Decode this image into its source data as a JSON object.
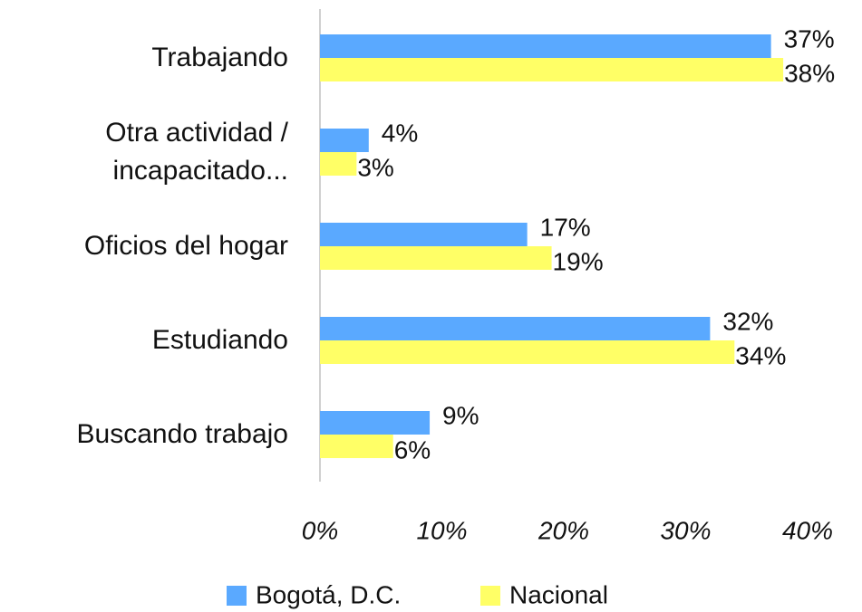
{
  "chart_data": {
    "type": "barh",
    "categories": [
      "Trabajando",
      "Otra actividad / incapacitado...",
      "Oficios del hogar",
      "Estudiando",
      "Buscando trabajo"
    ],
    "series": [
      {
        "name": "Bogotá, D.C.",
        "color": "#5aa9ff",
        "values": [
          37,
          4,
          17,
          32,
          9
        ],
        "value_labels": [
          "37%",
          "4%",
          "17%",
          "32%",
          "9%"
        ]
      },
      {
        "name": "Nacional",
        "color": "#ffff66",
        "values": [
          38,
          3,
          19,
          34,
          6
        ],
        "value_labels": [
          "38%",
          "3%",
          "19%",
          "34%",
          "6%"
        ]
      }
    ],
    "xlim": [
      0,
      40
    ],
    "xticks": [
      {
        "value": 0,
        "label": "0%"
      },
      {
        "value": 10,
        "label": "10%"
      },
      {
        "value": 20,
        "label": "20%"
      },
      {
        "value": 30,
        "label": "30%"
      },
      {
        "value": 40,
        "label": "40%"
      }
    ],
    "legend": "bottom"
  }
}
